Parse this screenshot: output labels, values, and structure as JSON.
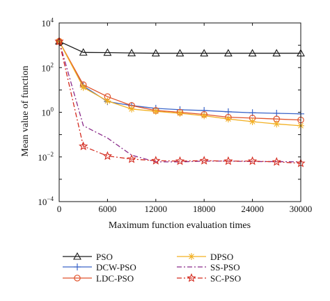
{
  "chart_data": {
    "type": "line",
    "title": "",
    "xlabel": "Maximum function evaluation times",
    "ylabel": "Mean value of function",
    "x_ticks": [
      0,
      6000,
      12000,
      18000,
      24000,
      30000
    ],
    "x_tick_labels": [
      "0",
      "6000",
      "12000",
      "18000",
      "24000",
      "30000"
    ],
    "xlim": [
      0,
      30000
    ],
    "y_scale": "log",
    "ylim": [
      0.0001,
      10000
    ],
    "y_ticks": [
      0.0001,
      0.01,
      1,
      100,
      10000
    ],
    "y_tick_labels": [
      {
        "base": "10",
        "exp": "−4"
      },
      {
        "base": "10",
        "exp": "−2"
      },
      {
        "base": "10",
        "exp": "0"
      },
      {
        "base": "10",
        "exp": "2"
      },
      {
        "base": "10",
        "exp": "4"
      }
    ],
    "grid": false,
    "legend_position": "below",
    "series": [
      {
        "name": "PSO",
        "color": "#1a1a1a",
        "marker": "triangle",
        "dash": "solid",
        "x": [
          0,
          3000,
          6000,
          9000,
          12000,
          15000,
          18000,
          21000,
          24000,
          27000,
          30000
        ],
        "y": [
          1500,
          480,
          470,
          450,
          440,
          440,
          440,
          440,
          440,
          440,
          440
        ]
      },
      {
        "name": "DCW-PSO",
        "color": "#3a64c8",
        "marker": "plus",
        "dash": "solid",
        "x": [
          0,
          3000,
          6000,
          9000,
          12000,
          15000,
          18000,
          21000,
          24000,
          27000,
          30000
        ],
        "y": [
          1500,
          15,
          3,
          2,
          1.5,
          1.3,
          1.2,
          1.05,
          0.95,
          0.9,
          0.85
        ]
      },
      {
        "name": "LDC-PSO",
        "color": "#e0522a",
        "marker": "circle",
        "dash": "solid",
        "x": [
          0,
          3000,
          6000,
          9000,
          12000,
          15000,
          18000,
          21000,
          24000,
          27000,
          30000
        ],
        "y": [
          1500,
          17,
          5,
          2,
          1.2,
          1,
          0.8,
          0.6,
          0.55,
          0.5,
          0.45
        ]
      },
      {
        "name": "DPSO",
        "color": "#f2b022",
        "marker": "asterisk",
        "dash": "solid",
        "x": [
          0,
          3000,
          6000,
          9000,
          12000,
          15000,
          18000,
          21000,
          24000,
          27000,
          30000
        ],
        "y": [
          1500,
          13,
          3.2,
          1.4,
          1.1,
          0.9,
          0.7,
          0.5,
          0.38,
          0.3,
          0.25
        ]
      },
      {
        "name": "SS-PSO",
        "color": "#8a2a8a",
        "marker": "none",
        "dash": "dashdot",
        "x": [
          0,
          3000,
          6000,
          9000,
          12000,
          15000,
          18000,
          21000,
          24000,
          27000,
          30000
        ],
        "y": [
          1500,
          0.25,
          0.07,
          0.012,
          0.006,
          0.006,
          0.0065,
          0.0065,
          0.0062,
          0.0062,
          0.006
        ]
      },
      {
        "name": "SC-PSO",
        "color": "#d42a1e",
        "marker": "star",
        "dash": "dashdot",
        "x": [
          0,
          3000,
          6000,
          9000,
          12000,
          15000,
          18000,
          21000,
          24000,
          27000,
          30000
        ],
        "y": [
          1500,
          0.03,
          0.011,
          0.008,
          0.0068,
          0.0065,
          0.0068,
          0.0065,
          0.0065,
          0.006,
          0.0052
        ]
      }
    ]
  }
}
